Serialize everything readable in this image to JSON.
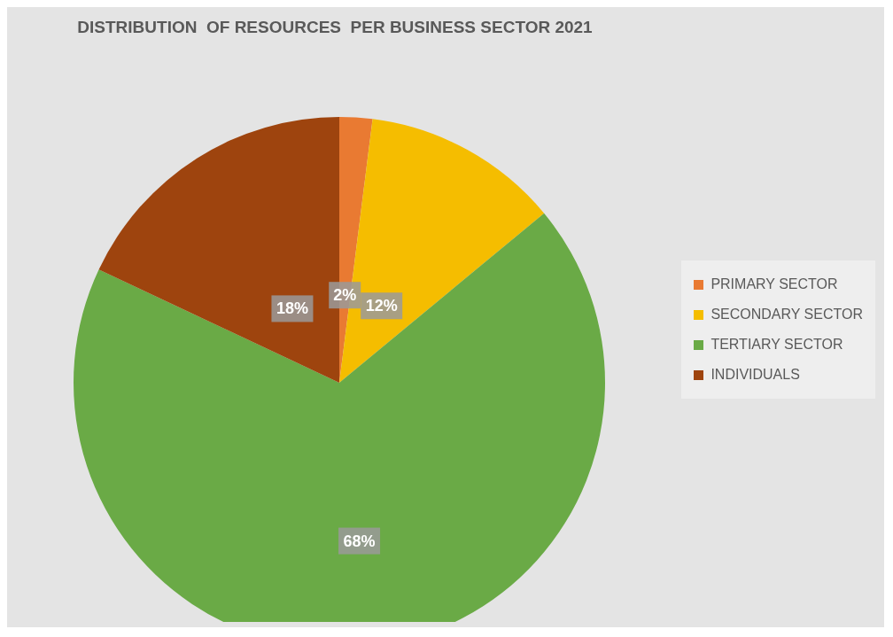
{
  "chart_data": {
    "type": "pie",
    "title": "DISTRIBUTION  OF RESOURCES  PER BUSINESS SECTOR 2021",
    "categories": [
      "PRIMARY SECTOR",
      "SECONDARY SECTOR",
      "TERTIARY SECTOR",
      "INDIVIDUALS"
    ],
    "values": [
      2,
      12,
      68,
      18
    ],
    "colors": [
      "#e97a32",
      "#f5bd00",
      "#6aaa46",
      "#9e440e"
    ],
    "value_labels": [
      "2%",
      "12%",
      "68%",
      "18%"
    ],
    "legend": "right"
  }
}
